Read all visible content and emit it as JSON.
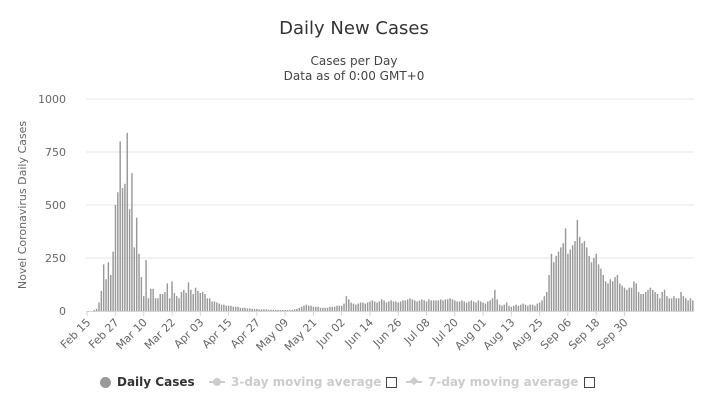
{
  "chart_data": {
    "type": "bar",
    "title": "Daily New Cases",
    "subtitle_lines": [
      "Cases per Day",
      "Data as of 0:00 GMT+0"
    ],
    "ylabel": "Novel Coronavirus Daily Cases",
    "ylim": [
      0,
      1000
    ],
    "yticks": [
      0,
      250,
      500,
      750,
      1000
    ],
    "grid": true,
    "legend_placement": "bottom",
    "bar_color": "#999999",
    "first_date": "Feb 15",
    "xtick_labels": [
      "Feb 15",
      "Feb 27",
      "Mar 10",
      "Mar 22",
      "Apr 03",
      "Apr 15",
      "Apr 27",
      "May 09",
      "May 21",
      "Jun 02",
      "Jun 14",
      "Jun 26",
      "Jul 08",
      "Jul 20",
      "Aug 01",
      "Aug 13",
      "Aug 25",
      "Sep 06",
      "Sep 18",
      "Sep 30"
    ],
    "series": [
      {
        "name": "Daily Cases",
        "values": [
          0,
          0,
          0,
          5,
          10,
          40,
          95,
          220,
          150,
          230,
          170,
          280,
          500,
          560,
          800,
          580,
          600,
          840,
          480,
          650,
          300,
          440,
          270,
          160,
          70,
          240,
          60,
          105,
          105,
          60,
          60,
          80,
          80,
          90,
          130,
          60,
          140,
          85,
          70,
          60,
          90,
          100,
          85,
          135,
          100,
          80,
          110,
          95,
          85,
          90,
          80,
          60,
          60,
          45,
          45,
          40,
          35,
          30,
          30,
          25,
          25,
          25,
          20,
          20,
          20,
          15,
          15,
          15,
          12,
          12,
          10,
          10,
          10,
          8,
          8,
          8,
          8,
          6,
          6,
          6,
          5,
          5,
          5,
          5,
          5,
          5,
          5,
          5,
          8,
          10,
          15,
          20,
          25,
          30,
          25,
          25,
          20,
          20,
          20,
          15,
          15,
          15,
          15,
          20,
          20,
          20,
          25,
          25,
          25,
          35,
          70,
          55,
          40,
          35,
          30,
          35,
          40,
          40,
          35,
          40,
          45,
          50,
          45,
          40,
          45,
          55,
          50,
          40,
          45,
          50,
          45,
          45,
          40,
          45,
          50,
          50,
          55,
          60,
          55,
          50,
          45,
          50,
          55,
          50,
          45,
          55,
          50,
          50,
          50,
          50,
          55,
          50,
          55,
          55,
          60,
          55,
          50,
          45,
          45,
          50,
          45,
          40,
          45,
          50,
          45,
          40,
          50,
          45,
          40,
          35,
          45,
          50,
          60,
          100,
          55,
          30,
          25,
          30,
          40,
          25,
          20,
          25,
          30,
          25,
          30,
          35,
          30,
          25,
          30,
          30,
          25,
          35,
          40,
          50,
          70,
          90,
          170,
          270,
          230,
          260,
          280,
          300,
          320,
          390,
          270,
          290,
          310,
          330,
          430,
          350,
          320,
          330,
          300,
          260,
          230,
          250,
          270,
          220,
          200,
          170,
          140,
          130,
          150,
          140,
          160,
          170,
          130,
          120,
          110,
          100,
          110,
          110,
          140,
          130,
          90,
          80,
          80,
          90,
          100,
          110,
          100,
          90,
          80,
          60,
          90,
          100,
          70,
          60,
          60,
          70,
          60,
          60,
          90,
          70,
          60,
          50,
          60,
          50
        ]
      }
    ]
  },
  "legend": {
    "items": [
      {
        "label": "Daily Cases",
        "marker_color": "#999999"
      },
      {
        "label": "3-day moving average",
        "marker_color": "#cccccc"
      },
      {
        "label": "7-day moving average",
        "marker_color": "#cccccc"
      }
    ]
  }
}
